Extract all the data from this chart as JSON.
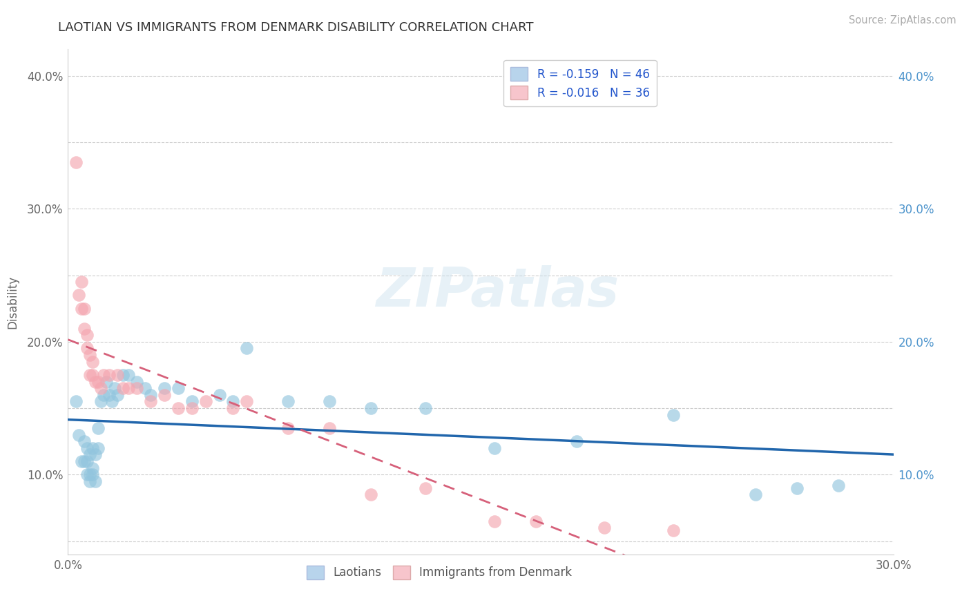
{
  "title": "LAOTIAN VS IMMIGRANTS FROM DENMARK DISABILITY CORRELATION CHART",
  "source": "Source: ZipAtlas.com",
  "ylabel": "Disability",
  "watermark": "ZIPatlas",
  "xlim": [
    0.0,
    0.3
  ],
  "ylim": [
    0.04,
    0.42
  ],
  "ytick_vals": [
    0.05,
    0.1,
    0.15,
    0.2,
    0.25,
    0.3,
    0.35,
    0.4
  ],
  "xtick_vals": [
    0.0,
    0.05,
    0.1,
    0.15,
    0.2,
    0.25,
    0.3
  ],
  "laotian_color": "#92c5de",
  "denmark_color": "#f4a6b0",
  "laotian_line_color": "#2166ac",
  "denmark_line_color": "#d6607a",
  "legend_box_laotian": "#b8d4ec",
  "legend_box_denmark": "#f7c5cc",
  "laotian_points_x": [
    0.003,
    0.004,
    0.005,
    0.006,
    0.006,
    0.007,
    0.007,
    0.007,
    0.008,
    0.008,
    0.008,
    0.009,
    0.009,
    0.009,
    0.01,
    0.01,
    0.011,
    0.011,
    0.012,
    0.013,
    0.014,
    0.015,
    0.016,
    0.017,
    0.018,
    0.02,
    0.022,
    0.025,
    0.028,
    0.03,
    0.035,
    0.04,
    0.045,
    0.055,
    0.06,
    0.065,
    0.08,
    0.095,
    0.11,
    0.13,
    0.155,
    0.185,
    0.22,
    0.25,
    0.265,
    0.28
  ],
  "laotian_points_y": [
    0.155,
    0.13,
    0.11,
    0.11,
    0.125,
    0.1,
    0.11,
    0.12,
    0.095,
    0.1,
    0.115,
    0.1,
    0.105,
    0.12,
    0.095,
    0.115,
    0.12,
    0.135,
    0.155,
    0.16,
    0.17,
    0.16,
    0.155,
    0.165,
    0.16,
    0.175,
    0.175,
    0.17,
    0.165,
    0.16,
    0.165,
    0.165,
    0.155,
    0.16,
    0.155,
    0.195,
    0.155,
    0.155,
    0.15,
    0.15,
    0.12,
    0.125,
    0.145,
    0.085,
    0.09,
    0.092
  ],
  "denmark_points_x": [
    0.003,
    0.004,
    0.005,
    0.005,
    0.006,
    0.006,
    0.007,
    0.007,
    0.008,
    0.008,
    0.009,
    0.009,
    0.01,
    0.011,
    0.012,
    0.013,
    0.015,
    0.018,
    0.02,
    0.022,
    0.025,
    0.03,
    0.035,
    0.04,
    0.045,
    0.05,
    0.06,
    0.065,
    0.08,
    0.095,
    0.11,
    0.13,
    0.155,
    0.17,
    0.195,
    0.22
  ],
  "denmark_points_y": [
    0.335,
    0.235,
    0.225,
    0.245,
    0.21,
    0.225,
    0.195,
    0.205,
    0.175,
    0.19,
    0.175,
    0.185,
    0.17,
    0.17,
    0.165,
    0.175,
    0.175,
    0.175,
    0.165,
    0.165,
    0.165,
    0.155,
    0.16,
    0.15,
    0.15,
    0.155,
    0.15,
    0.155,
    0.135,
    0.135,
    0.085,
    0.09,
    0.065,
    0.065,
    0.06,
    0.058
  ]
}
